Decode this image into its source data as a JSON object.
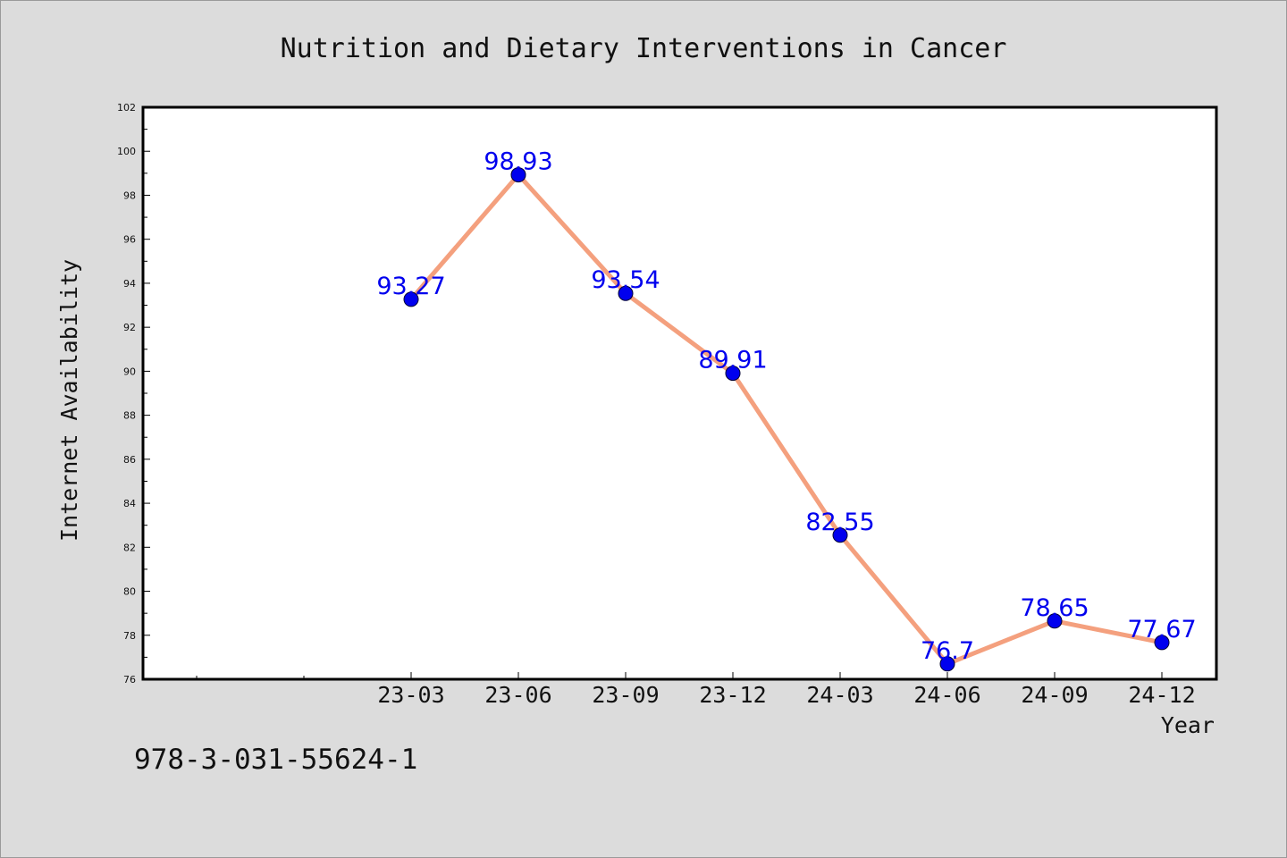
{
  "footnote": "978-3-031-55624-1",
  "colors": {
    "line": "#f4a07e",
    "marker": "#0000ee",
    "label": "#0000ee",
    "plot_bg": "#ffffff",
    "page_bg": "#dcdcdc"
  },
  "chart_data": {
    "type": "line",
    "title": "Nutrition and Dietary Interventions in Cancer",
    "xlabel": "Year",
    "ylabel": "Internet Availability",
    "categories": [
      "23-03",
      "23-06",
      "23-09",
      "23-12",
      "24-03",
      "24-06",
      "24-09",
      "24-12"
    ],
    "values": [
      93.27,
      98.93,
      93.54,
      89.91,
      82.55,
      76.7,
      78.65,
      77.67
    ],
    "data_labels": [
      "93.27",
      "98.93",
      "93.54",
      "89.91",
      "82.55",
      "76.7",
      "78.65",
      "77.67"
    ],
    "ylim": [
      76,
      102
    ],
    "yticks": [
      "76",
      "78",
      "80",
      "82",
      "84",
      "86",
      "88",
      "90",
      "92",
      "94",
      "96",
      "98",
      "100",
      "102"
    ],
    "grid": false,
    "legend": "none"
  }
}
